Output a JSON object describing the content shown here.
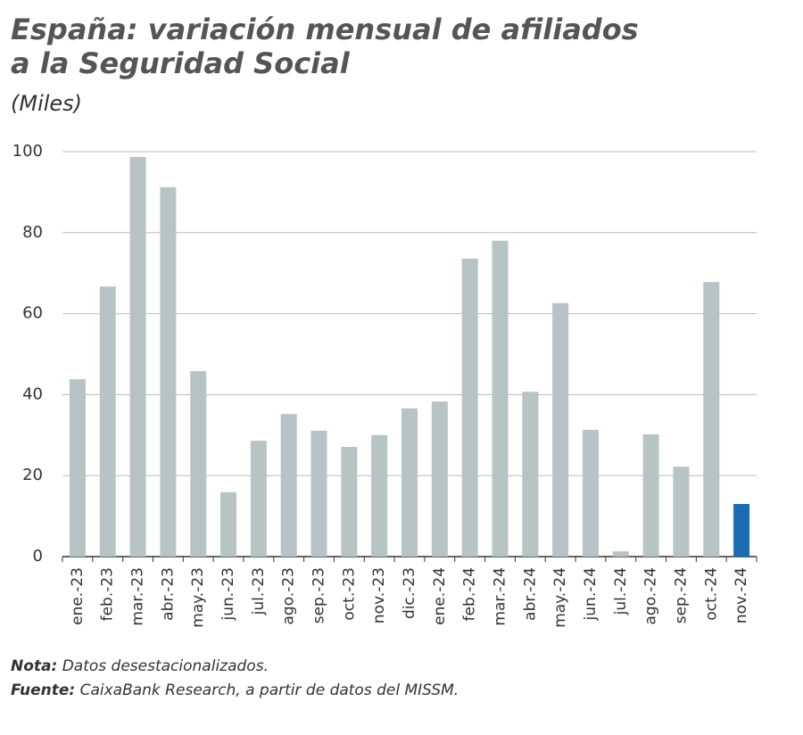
{
  "chart_data": {
    "type": "bar",
    "title": [
      "España: variación mensual de afiliados",
      "a la Seguridad Social"
    ],
    "subtitle": "(Miles)",
    "categories": [
      "ene.-23",
      "feb.-23",
      "mar.-23",
      "abr.-23",
      "may.-23",
      "jun.-23",
      "jul.-23",
      "ago.-23",
      "sep.-23",
      "oct.-23",
      "nov.-23",
      "dic.-23",
      "ene.-24",
      "feb.-24",
      "mar.-24",
      "abr.-24",
      "may.-24",
      "jun.-24",
      "jul.-24",
      "ago.-24",
      "sep.-24",
      "oct.-24",
      "nov.-24"
    ],
    "values": [
      43.8,
      66.7,
      98.7,
      91.2,
      45.8,
      15.9,
      28.6,
      35.2,
      31.1,
      27.1,
      30.0,
      36.6,
      38.3,
      73.6,
      78.0,
      40.7,
      62.6,
      31.3,
      1.3,
      30.2,
      22.2,
      67.8,
      13.0
    ],
    "colors": [
      "#b8c3c6",
      "#b8c3c6",
      "#b8c3c6",
      "#b8c3c6",
      "#b8c3c6",
      "#b8c3c6",
      "#b8c3c6",
      "#b8c3c6",
      "#b8c3c6",
      "#b8c3c6",
      "#b8c3c6",
      "#b8c3c6",
      "#b8c3c6",
      "#b8c3c6",
      "#b8c3c6",
      "#b8c3c6",
      "#b8c3c6",
      "#b8c3c6",
      "#b8c3c6",
      "#b8c3c6",
      "#b8c3c6",
      "#b8c3c6",
      "#1a6db3"
    ],
    "ylim": [
      0,
      100
    ],
    "yticks": [
      0,
      20,
      40,
      60,
      80,
      100
    ],
    "grid": true,
    "notes": [
      {
        "label": "Nota:",
        "text": "Datos desestacionalizados."
      },
      {
        "label": "Fuente:",
        "text": "CaixaBank Research, a partir de datos del MISSM."
      }
    ]
  }
}
